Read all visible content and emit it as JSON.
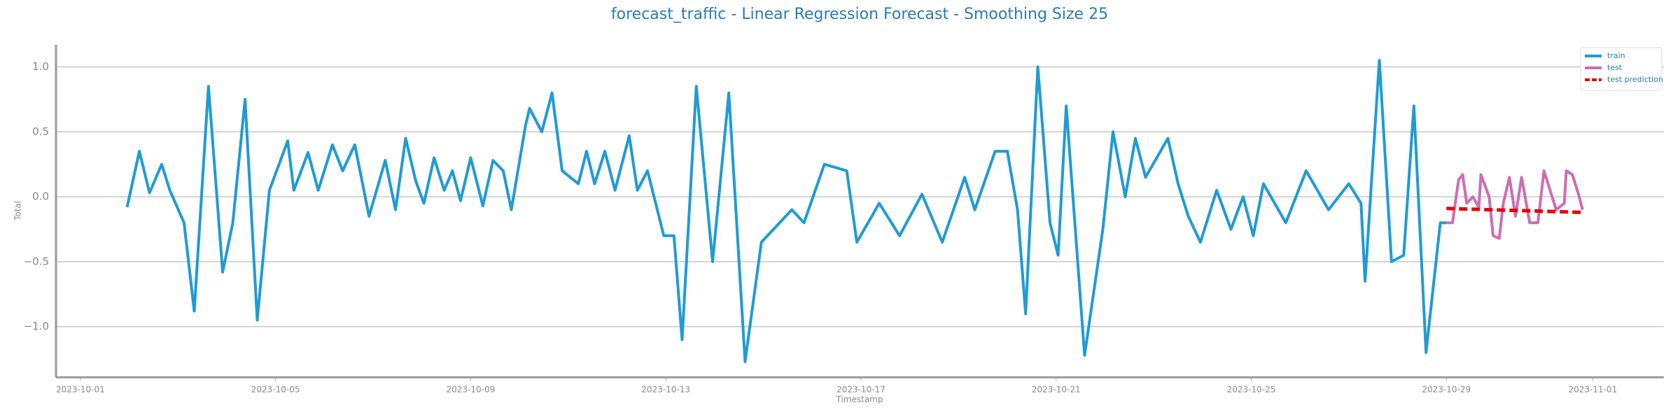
{
  "chart_data": {
    "type": "line",
    "title": "forecast_traffic - Linear Regression Forecast - Smoothing Size 25",
    "xlabel": "Timestamp",
    "ylabel": "Total",
    "xlim": [
      "2023-09-30T12:00",
      "2023-11-02T11:00"
    ],
    "xticks": [
      "2023-10-01",
      "2023-10-05",
      "2023-10-09",
      "2023-10-13",
      "2023-10-17",
      "2023-10-21",
      "2023-10-25",
      "2023-10-29",
      "2023-11-01"
    ],
    "ylim": [
      -1.39,
      1.17
    ],
    "yticks": [
      {
        "value": -1,
        "label": "−1.0"
      },
      {
        "value": -0.5,
        "label": "−0.5"
      },
      {
        "value": 0,
        "label": "0.0"
      },
      {
        "value": 0.5,
        "label": "0.5"
      },
      {
        "value": 1,
        "label": "1.0"
      }
    ],
    "grid": true,
    "legend": "upper right",
    "series": [
      {
        "name": "train",
        "color": "#1f9bd5",
        "dash": false,
        "x": [
          "2023-10-01T23:00",
          "2023-10-02T05:00",
          "2023-10-02T10:00",
          "2023-10-02T16:00",
          "2023-10-02T20:00",
          "2023-10-03T03:00",
          "2023-10-03T08:00",
          "2023-10-03T15:00",
          "2023-10-03T22:00",
          "2023-10-04T03:00",
          "2023-10-04T09:00",
          "2023-10-04T15:00",
          "2023-10-04T21:00",
          "2023-10-05T06:00",
          "2023-10-05T09:00",
          "2023-10-05T16:00",
          "2023-10-05T21:00",
          "2023-10-06T04:00",
          "2023-10-06T09:00",
          "2023-10-06T15:00",
          "2023-10-06T22:00",
          "2023-10-07T06:00",
          "2023-10-07T11:00",
          "2023-10-07T16:00",
          "2023-10-07T21:00",
          "2023-10-08T01:00",
          "2023-10-08T06:00",
          "2023-10-08T11:00",
          "2023-10-08T15:00",
          "2023-10-08T19:00",
          "2023-10-09T00:00",
          "2023-10-09T06:00",
          "2023-10-09T11:00",
          "2023-10-09T16:00",
          "2023-10-09T20:00",
          "2023-10-10T03:00",
          "2023-10-10T05:00",
          "2023-10-10T11:00",
          "2023-10-10T16:00",
          "2023-10-10T21:00",
          "2023-10-11T05:00",
          "2023-10-11T09:00",
          "2023-10-11T13:00",
          "2023-10-11T18:00",
          "2023-10-11T23:00",
          "2023-10-12T06:00",
          "2023-10-12T10:00",
          "2023-10-12T15:00",
          "2023-10-12T19:00",
          "2023-10-12T23:00",
          "2023-10-13T04:00",
          "2023-10-13T08:00",
          "2023-10-13T15:00",
          "2023-10-13T23:00",
          "2023-10-14T07:00",
          "2023-10-14T15:00",
          "2023-10-14T23:00",
          "2023-10-15T14:00",
          "2023-10-15T20:00",
          "2023-10-16T06:00",
          "2023-10-16T17:00",
          "2023-10-16T22:00",
          "2023-10-17T09:00",
          "2023-10-17T19:00",
          "2023-10-18T06:00",
          "2023-10-18T16:00",
          "2023-10-19T03:00",
          "2023-10-19T08:00",
          "2023-10-19T18:00",
          "2023-10-20T00:00",
          "2023-10-20T05:00",
          "2023-10-20T09:00",
          "2023-10-20T15:00",
          "2023-10-20T21:00",
          "2023-10-21T01:00",
          "2023-10-21T05:00",
          "2023-10-21T14:00",
          "2023-10-21T23:00",
          "2023-10-22T04:00",
          "2023-10-22T10:00",
          "2023-10-22T15:00",
          "2023-10-22T20:00",
          "2023-10-23T07:00",
          "2023-10-23T12:00",
          "2023-10-23T17:00",
          "2023-10-23T23:00",
          "2023-10-24T07:00",
          "2023-10-24T14:00",
          "2023-10-24T20:00",
          "2023-10-25T01:00",
          "2023-10-25T06:00",
          "2023-10-25T17:00",
          "2023-10-26T03:00",
          "2023-10-26T14:00",
          "2023-10-27T00:00",
          "2023-10-27T06:00",
          "2023-10-27T08:00",
          "2023-10-27T15:00",
          "2023-10-27T21:00",
          "2023-10-28T03:00",
          "2023-10-28T08:00",
          "2023-10-28T14:00",
          "2023-10-28T21:00",
          "2023-10-29T00:00"
        ],
        "values": [
          -0.08,
          0.35,
          0.03,
          0.25,
          0.05,
          -0.2,
          -0.88,
          0.85,
          -0.58,
          -0.2,
          0.75,
          -0.95,
          0.05,
          0.43,
          0.05,
          0.34,
          0.05,
          0.4,
          0.2,
          0.4,
          -0.15,
          0.28,
          -0.1,
          0.45,
          0.12,
          -0.05,
          0.3,
          0.05,
          0.2,
          -0.03,
          0.3,
          -0.07,
          0.28,
          0.2,
          -0.1,
          0.55,
          0.68,
          0.5,
          0.8,
          0.2,
          0.1,
          0.35,
          0.1,
          0.35,
          0.05,
          0.47,
          0.05,
          0.2,
          -0.05,
          -0.3,
          -0.3,
          -1.1,
          0.85,
          -0.5,
          0.8,
          -1.27,
          -0.35,
          -0.1,
          -0.2,
          0.25,
          0.2,
          -0.35,
          -0.05,
          -0.3,
          0.02,
          -0.35,
          0.15,
          -0.1,
          0.35,
          0.35,
          -0.1,
          -0.9,
          1.0,
          -0.2,
          -0.45,
          0.7,
          -1.22,
          -0.25,
          0.5,
          0.0,
          0.45,
          0.15,
          0.45,
          0.1,
          -0.15,
          -0.35,
          0.05,
          -0.25,
          0.0,
          -0.3,
          0.1,
          -0.2,
          0.2,
          -0.1,
          0.1,
          -0.05,
          -0.65,
          1.05,
          -0.5,
          -0.45,
          0.7,
          -1.2,
          -0.2,
          -0.2
        ]
      },
      {
        "name": "test",
        "color": "#cc6db3",
        "dash": false,
        "x": [
          "2023-10-29T00:00",
          "2023-10-29T03:00",
          "2023-10-29T06:00",
          "2023-10-29T08:00",
          "2023-10-29T10:00",
          "2023-10-29T13:00",
          "2023-10-29T16:00",
          "2023-10-29T17:00",
          "2023-10-29T21:00",
          "2023-10-29T23:00",
          "2023-10-30T02:00",
          "2023-10-30T04:00",
          "2023-10-30T07:00",
          "2023-10-30T10:00",
          "2023-10-30T13:00",
          "2023-10-30T17:00",
          "2023-10-30T21:00",
          "2023-10-31T00:00",
          "2023-10-31T03:00",
          "2023-10-31T06:00",
          "2023-10-31T10:00",
          "2023-10-31T11:00",
          "2023-10-31T14:00",
          "2023-10-31T17:00",
          "2023-10-31T19:00"
        ],
        "values": [
          -0.2,
          -0.2,
          0.13,
          0.17,
          -0.05,
          0.0,
          -0.08,
          0.17,
          0.0,
          -0.3,
          -0.32,
          -0.05,
          0.15,
          -0.15,
          0.15,
          -0.2,
          -0.2,
          0.2,
          0.05,
          -0.1,
          -0.05,
          0.2,
          0.17,
          0.02,
          -0.1
        ]
      },
      {
        "name": "test prediction",
        "color": "#e8000b",
        "dash": true,
        "x": [
          "2023-10-29T00:00",
          "2023-10-31T19:00"
        ],
        "values": [
          -0.09,
          -0.12
        ]
      }
    ]
  }
}
